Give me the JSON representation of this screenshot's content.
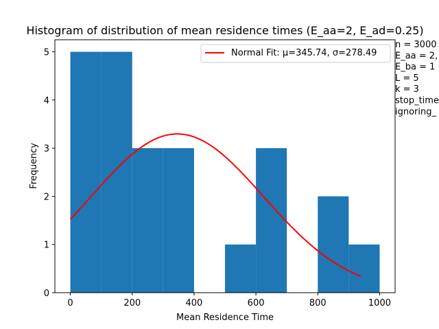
{
  "chart_data": {
    "type": "bar",
    "title": "Histogram of distribution of mean residence times (E_aa=2, E_ad=0.25)",
    "xlabel": "Mean Residence Time",
    "ylabel": "Frequency",
    "xlim": [
      -50,
      1050
    ],
    "ylim": [
      0,
      5.25
    ],
    "xticks": [
      0,
      200,
      400,
      600,
      800,
      1000
    ],
    "yticks": [
      0,
      1,
      2,
      3,
      4,
      5
    ],
    "bins": [
      {
        "x0": 0,
        "x1": 100,
        "count": 5
      },
      {
        "x0": 100,
        "x1": 200,
        "count": 5
      },
      {
        "x0": 200,
        "x1": 300,
        "count": 3
      },
      {
        "x0": 300,
        "x1": 400,
        "count": 3
      },
      {
        "x0": 400,
        "x1": 500,
        "count": 0
      },
      {
        "x0": 500,
        "x1": 600,
        "count": 1
      },
      {
        "x0": 600,
        "x1": 700,
        "count": 3
      },
      {
        "x0": 700,
        "x1": 800,
        "count": 0
      },
      {
        "x0": 800,
        "x1": 900,
        "count": 2
      },
      {
        "x0": 900,
        "x1": 1000,
        "count": 1
      }
    ],
    "bar_color": "#1f77b4",
    "fit": {
      "label": "Normal Fit: μ=345.74, σ=278.49",
      "color": "#ff0000",
      "mu": 345.74,
      "sigma": 278.49,
      "scale": 2300,
      "x_range": [
        0,
        940
      ]
    },
    "legend_position": "top-right",
    "parameters_text": [
      "n = 3000",
      "E_aa = 2,",
      "E_ba = 1",
      "L = 5",
      "k = 3",
      "stop_time",
      "ignoring_"
    ]
  }
}
